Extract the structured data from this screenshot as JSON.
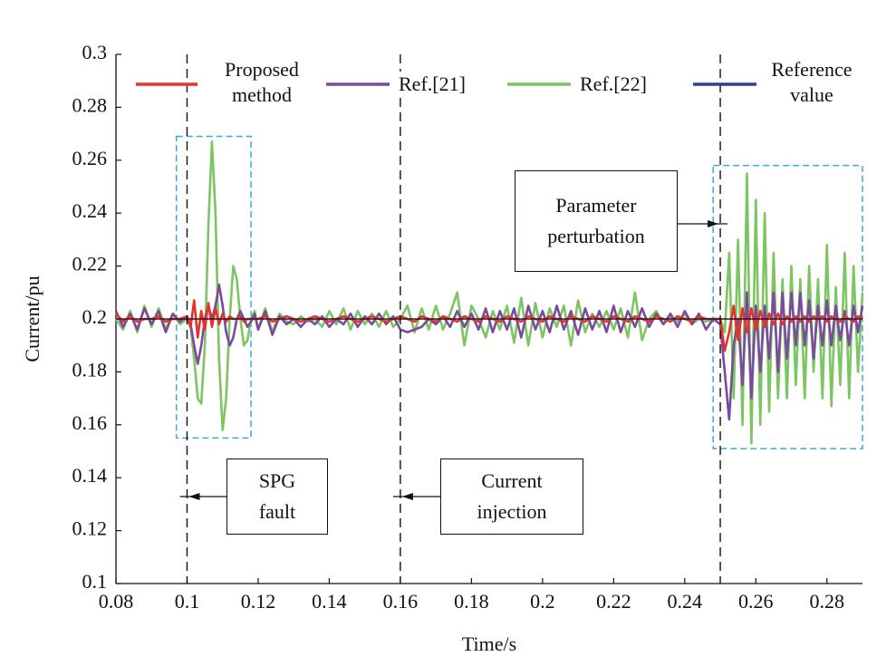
{
  "chart_data": {
    "type": "line",
    "xlabel": "Time/s",
    "ylabel": "Current/pu",
    "xlim": [
      0.08,
      0.29
    ],
    "xticks": [
      0.08,
      0.1,
      0.12,
      0.14,
      0.16,
      0.18,
      0.2,
      0.22,
      0.24,
      0.26,
      0.28
    ],
    "ylim": [
      0.1,
      0.3
    ],
    "yticks": [
      0.1,
      0.12,
      0.14,
      0.16,
      0.18,
      0.2,
      0.22,
      0.24,
      0.26,
      0.28,
      0.3
    ],
    "x": [
      0.08,
      0.082,
      0.084,
      0.086,
      0.088,
      0.09,
      0.092,
      0.094,
      0.096,
      0.098,
      0.1,
      0.101,
      0.102,
      0.103,
      0.104,
      0.105,
      0.106,
      0.107,
      0.108,
      0.109,
      0.11,
      0.111,
      0.112,
      0.113,
      0.114,
      0.115,
      0.116,
      0.117,
      0.118,
      0.119,
      0.12,
      0.122,
      0.124,
      0.126,
      0.128,
      0.13,
      0.132,
      0.134,
      0.136,
      0.138,
      0.14,
      0.142,
      0.144,
      0.146,
      0.148,
      0.15,
      0.152,
      0.154,
      0.156,
      0.158,
      0.16,
      0.162,
      0.164,
      0.166,
      0.168,
      0.17,
      0.172,
      0.174,
      0.176,
      0.178,
      0.18,
      0.182,
      0.184,
      0.186,
      0.188,
      0.19,
      0.192,
      0.194,
      0.196,
      0.198,
      0.2,
      0.202,
      0.204,
      0.206,
      0.208,
      0.21,
      0.212,
      0.214,
      0.216,
      0.218,
      0.22,
      0.222,
      0.224,
      0.226,
      0.228,
      0.23,
      0.232,
      0.234,
      0.236,
      0.238,
      0.24,
      0.242,
      0.244,
      0.246,
      0.248,
      0.25,
      0.25125,
      0.2525,
      0.25375,
      0.255,
      0.25625,
      0.2575,
      0.25875,
      0.26,
      0.26125,
      0.2625,
      0.26375,
      0.265,
      0.26625,
      0.2675,
      0.26875,
      0.27,
      0.27125,
      0.2725,
      0.27375,
      0.275,
      0.27625,
      0.2775,
      0.27875,
      0.28,
      0.28125,
      0.2825,
      0.28375,
      0.285,
      0.28625,
      0.2875,
      0.28875,
      0.29
    ],
    "series": [
      {
        "name": "Proposed method",
        "color": "#e8312a",
        "values": [
          0.202,
          0.199,
          0.201,
          0.199,
          0.2,
          0.2,
          0.201,
          0.199,
          0.2,
          0.2,
          0.201,
          0.197,
          0.207,
          0.193,
          0.203,
          0.196,
          0.206,
          0.197,
          0.204,
          0.198,
          0.202,
          0.199,
          0.201,
          0.2,
          0.2,
          0.201,
          0.199,
          0.2,
          0.2,
          0.2,
          0.2,
          0.201,
          0.199,
          0.2,
          0.201,
          0.2,
          0.199,
          0.2,
          0.201,
          0.2,
          0.199,
          0.2,
          0.201,
          0.2,
          0.199,
          0.2,
          0.201,
          0.2,
          0.199,
          0.2,
          0.201,
          0.2,
          0.199,
          0.201,
          0.2,
          0.199,
          0.201,
          0.2,
          0.199,
          0.201,
          0.2,
          0.199,
          0.201,
          0.2,
          0.199,
          0.201,
          0.2,
          0.199,
          0.201,
          0.2,
          0.199,
          0.201,
          0.2,
          0.199,
          0.201,
          0.2,
          0.199,
          0.201,
          0.2,
          0.199,
          0.201,
          0.2,
          0.199,
          0.201,
          0.2,
          0.199,
          0.201,
          0.2,
          0.199,
          0.201,
          0.2,
          0.199,
          0.201,
          0.2,
          0.2,
          0.2,
          0.188,
          0.195,
          0.205,
          0.192,
          0.204,
          0.195,
          0.204,
          0.196,
          0.203,
          0.197,
          0.202,
          0.198,
          0.202,
          0.198,
          0.201,
          0.199,
          0.201,
          0.199,
          0.201,
          0.199,
          0.201,
          0.2,
          0.201,
          0.199,
          0.201,
          0.2,
          0.199,
          0.201,
          0.2,
          0.199,
          0.201,
          0.2
        ]
      },
      {
        "name": "Ref.[21]",
        "color": "#7a4a9e",
        "values": [
          0.203,
          0.197,
          0.202,
          0.196,
          0.204,
          0.198,
          0.203,
          0.195,
          0.202,
          0.199,
          0.201,
          0.198,
          0.19,
          0.183,
          0.19,
          0.2,
          0.205,
          0.2,
          0.205,
          0.213,
          0.205,
          0.195,
          0.19,
          0.193,
          0.2,
          0.203,
          0.2,
          0.197,
          0.199,
          0.202,
          0.196,
          0.203,
          0.194,
          0.201,
          0.198,
          0.2,
          0.197,
          0.2,
          0.198,
          0.201,
          0.197,
          0.2,
          0.198,
          0.202,
          0.197,
          0.201,
          0.198,
          0.202,
          0.198,
          0.201,
          0.196,
          0.195,
          0.196,
          0.197,
          0.2,
          0.198,
          0.201,
          0.197,
          0.203,
          0.197,
          0.202,
          0.196,
          0.204,
          0.195,
          0.203,
          0.196,
          0.204,
          0.193,
          0.205,
          0.196,
          0.203,
          0.195,
          0.205,
          0.196,
          0.203,
          0.194,
          0.204,
          0.196,
          0.203,
          0.195,
          0.205,
          0.195,
          0.203,
          0.197,
          0.204,
          0.197,
          0.202,
          0.198,
          0.202,
          0.197,
          0.203,
          0.198,
          0.202,
          0.196,
          0.2,
          0.198,
          0.18,
          0.162,
          0.19,
          0.2,
          0.175,
          0.21,
          0.17,
          0.205,
          0.18,
          0.205,
          0.185,
          0.21,
          0.18,
          0.21,
          0.185,
          0.21,
          0.19,
          0.21,
          0.19,
          0.207,
          0.185,
          0.205,
          0.19,
          0.207,
          0.19,
          0.205,
          0.192,
          0.203,
          0.19,
          0.205,
          0.195,
          0.205
        ]
      },
      {
        "name": "Ref.[22]",
        "color": "#7dc462",
        "values": [
          0.2,
          0.196,
          0.203,
          0.195,
          0.205,
          0.197,
          0.204,
          0.196,
          0.202,
          0.198,
          0.2,
          0.197,
          0.185,
          0.17,
          0.168,
          0.19,
          0.235,
          0.267,
          0.24,
          0.185,
          0.158,
          0.17,
          0.2,
          0.22,
          0.215,
          0.2,
          0.19,
          0.192,
          0.2,
          0.203,
          0.196,
          0.204,
          0.195,
          0.202,
          0.199,
          0.198,
          0.201,
          0.199,
          0.2,
          0.197,
          0.203,
          0.198,
          0.204,
          0.196,
          0.203,
          0.198,
          0.202,
          0.197,
          0.203,
          0.197,
          0.2,
          0.205,
          0.195,
          0.204,
          0.196,
          0.205,
          0.196,
          0.202,
          0.21,
          0.19,
          0.205,
          0.2,
          0.193,
          0.203,
          0.196,
          0.205,
          0.191,
          0.208,
          0.19,
          0.206,
          0.193,
          0.204,
          0.197,
          0.205,
          0.19,
          0.207,
          0.195,
          0.202,
          0.197,
          0.203,
          0.196,
          0.204,
          0.193,
          0.21,
          0.192,
          0.2,
          0.203,
          0.198,
          0.201,
          0.199,
          0.202,
          0.198,
          0.2,
          0.199,
          0.2,
          0.2,
          0.195,
          0.225,
          0.17,
          0.23,
          0.16,
          0.255,
          0.153,
          0.245,
          0.16,
          0.24,
          0.165,
          0.225,
          0.17,
          0.215,
          0.17,
          0.22,
          0.175,
          0.215,
          0.17,
          0.22,
          0.18,
          0.215,
          0.17,
          0.228,
          0.167,
          0.212,
          0.175,
          0.225,
          0.17,
          0.22,
          0.18,
          0.21
        ]
      },
      {
        "name": "Reference value",
        "color": "#2e3f8f",
        "x": [
          0.08,
          0.29
        ],
        "values": [
          0.2,
          0.2
        ]
      }
    ],
    "vlines": [
      0.1,
      0.16,
      0.25
    ],
    "regions": [
      {
        "x": [
          0.097,
          0.118
        ],
        "y": [
          0.155,
          0.269
        ]
      },
      {
        "x": [
          0.248,
          0.29
        ],
        "y": [
          0.151,
          0.258
        ]
      }
    ],
    "annotations": [
      {
        "text": "SPG fault",
        "x": 0.1
      },
      {
        "text": "Current injection",
        "x": 0.16
      },
      {
        "text": "Parameter perturbation",
        "x": 0.25
      }
    ]
  }
}
